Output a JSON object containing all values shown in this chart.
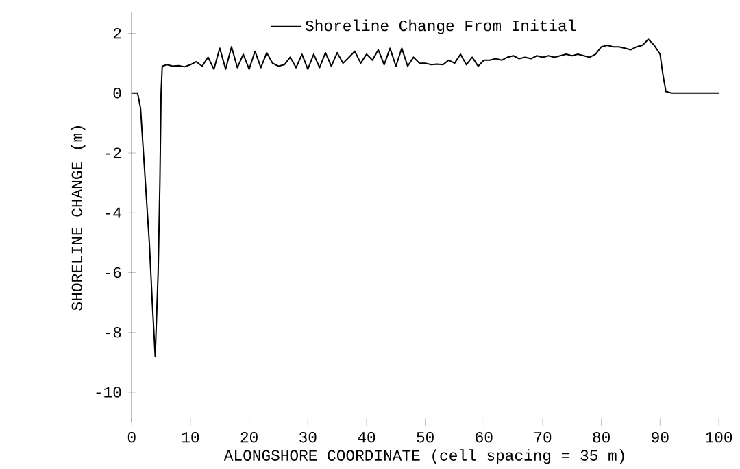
{
  "chart_data": {
    "type": "line",
    "xlabel": "ALONGSHORE COORDINATE (cell spacing = 35 m)",
    "ylabel": "SHORELINE CHANGE (m)",
    "x": [
      0,
      1,
      1.5,
      2,
      3,
      3.5,
      4,
      4.5,
      4.8,
      5,
      5.2,
      6,
      7,
      8,
      9,
      10,
      11,
      12,
      13,
      14,
      15,
      16,
      17,
      18,
      19,
      20,
      21,
      22,
      23,
      24,
      25,
      26,
      27,
      28,
      29,
      30,
      31,
      32,
      33,
      34,
      35,
      36,
      37,
      38,
      39,
      40,
      41,
      42,
      43,
      44,
      45,
      46,
      47,
      48,
      49,
      50,
      51,
      52,
      53,
      54,
      55,
      56,
      57,
      58,
      59,
      60,
      61,
      62,
      63,
      64,
      65,
      66,
      67,
      68,
      69,
      70,
      71,
      72,
      73,
      74,
      75,
      76,
      77,
      78,
      79,
      80,
      81,
      82,
      83,
      84,
      85,
      86,
      87,
      88,
      89,
      90,
      90.5,
      91,
      92,
      100
    ],
    "series": [
      {
        "name": "Shoreline Change From Initial",
        "color": "#000000",
        "values": [
          0,
          0,
          -0.5,
          -2,
          -5,
          -7,
          -8.8,
          -6,
          -3,
          0,
          0.9,
          0.95,
          0.9,
          0.92,
          0.88,
          0.95,
          1.05,
          0.9,
          1.2,
          0.8,
          1.5,
          0.8,
          1.55,
          0.85,
          1.3,
          0.8,
          1.4,
          0.85,
          1.35,
          1.0,
          0.9,
          0.95,
          1.2,
          0.85,
          1.3,
          0.8,
          1.3,
          0.85,
          1.35,
          0.9,
          1.35,
          1.0,
          1.2,
          1.4,
          1.0,
          1.3,
          1.1,
          1.45,
          0.95,
          1.5,
          0.9,
          1.5,
          0.9,
          1.2,
          1.0,
          1.0,
          0.95,
          0.97,
          0.95,
          1.1,
          1.0,
          1.3,
          0.95,
          1.2,
          0.9,
          1.1,
          1.1,
          1.15,
          1.1,
          1.2,
          1.25,
          1.15,
          1.2,
          1.15,
          1.25,
          1.2,
          1.25,
          1.2,
          1.25,
          1.3,
          1.25,
          1.3,
          1.25,
          1.2,
          1.3,
          1.55,
          1.6,
          1.55,
          1.55,
          1.5,
          1.45,
          1.55,
          1.6,
          1.8,
          1.6,
          1.3,
          0.6,
          0.05,
          0,
          0
        ]
      }
    ],
    "xlim": [
      0,
      100
    ],
    "ylim": [
      -11,
      2.7
    ],
    "xticks": [
      0,
      10,
      20,
      30,
      40,
      50,
      60,
      70,
      80,
      90,
      100
    ],
    "yticks": [
      2,
      0,
      -2,
      -4,
      -6,
      -8,
      -10
    ],
    "legend": "top",
    "line_style": "solid"
  }
}
